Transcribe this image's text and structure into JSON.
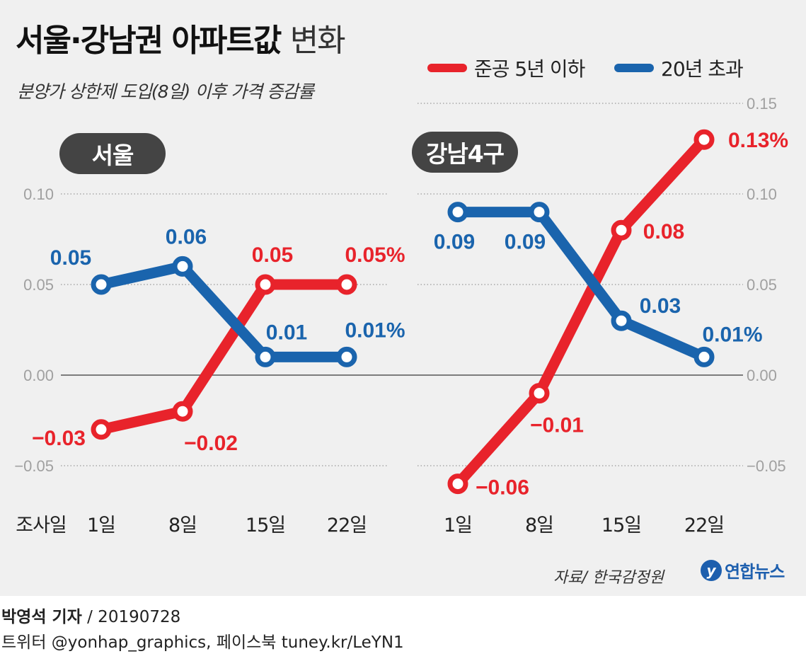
{
  "header": {
    "title_bold": "서울·강남권 아파트값",
    "title_light": "변화",
    "subtitle": "분양가 상한제 도입(8일) 이후 가격 증감률"
  },
  "legend": [
    {
      "label": "준공 5년 이하",
      "color": "#e8232b"
    },
    {
      "label": "20년 초과",
      "color": "#1a64ad"
    }
  ],
  "colors": {
    "red": "#e8232b",
    "blue": "#1a64ad"
  },
  "x_axis_title": "조사일",
  "chart_data": [
    {
      "type": "line",
      "title": "서울",
      "categories": [
        "1일",
        "8일",
        "15일",
        "22일"
      ],
      "ylim": [
        -0.05,
        0.1
      ],
      "yticks": [
        "0.10",
        "0.05",
        "0.00",
        "−0.05"
      ],
      "series": [
        {
          "name": "준공 5년 이하",
          "color": "#e8232b",
          "values": [
            -0.03,
            -0.02,
            0.05,
            0.05
          ],
          "labels": [
            "−0.03",
            "−0.02",
            "0.05",
            "0.05%"
          ]
        },
        {
          "name": "20년 초과",
          "color": "#1a64ad",
          "values": [
            0.05,
            0.06,
            0.01,
            0.01
          ],
          "labels": [
            "0.05",
            "0.06",
            "0.01",
            "0.01%"
          ]
        }
      ]
    },
    {
      "type": "line",
      "title": "강남4구",
      "categories": [
        "1일",
        "8일",
        "15일",
        "22일"
      ],
      "ylim": [
        -0.05,
        0.15
      ],
      "yticks": [
        "0.15",
        "0.10",
        "0.05",
        "0.00",
        "−0.05"
      ],
      "series": [
        {
          "name": "준공 5년 이하",
          "color": "#e8232b",
          "values": [
            -0.06,
            -0.01,
            0.08,
            0.13
          ],
          "labels": [
            "−0.06",
            "−0.01",
            "0.08",
            "0.13%"
          ]
        },
        {
          "name": "20년 초과",
          "color": "#1a64ad",
          "values": [
            0.09,
            0.09,
            0.03,
            0.01
          ],
          "labels": [
            "0.09",
            "0.09",
            "0.03",
            "0.01%"
          ]
        }
      ]
    }
  ],
  "source": "자료/ 한국감정원",
  "brand": {
    "logo_letter": "y",
    "name": "연합뉴스"
  },
  "footer": {
    "author": "박영석 기자",
    "date": " / 20190728",
    "sns": "트위터 @yonhap_graphics, 페이스북 tuney.kr/LeYN1"
  }
}
